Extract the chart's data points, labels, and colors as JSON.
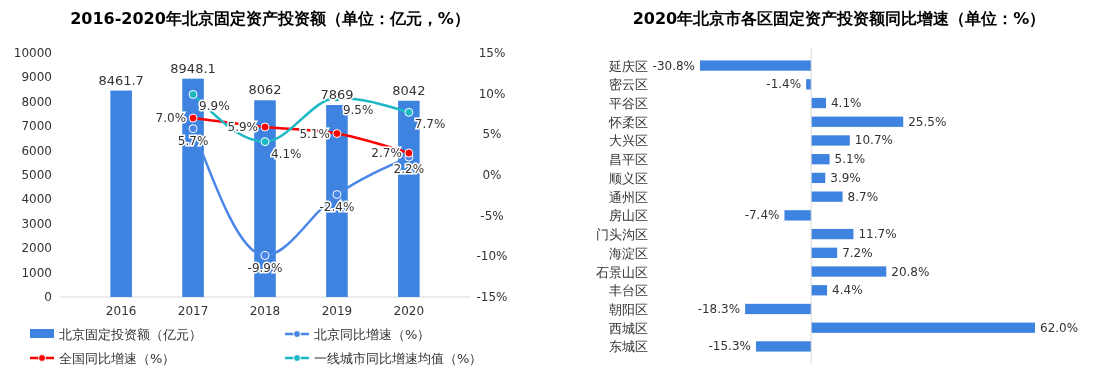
{
  "chart_data": [
    {
      "type": "bar",
      "title": "2016-2020年北京固定资产投资额（单位：亿元，%）",
      "categories": [
        "2016",
        "2017",
        "2018",
        "2019",
        "2020"
      ],
      "series": [
        {
          "name": "北京固定投资额（亿元）",
          "color": "#3f83e0",
          "values": [
            8461.7,
            8948.1,
            8062,
            7869,
            8042
          ],
          "value_labels": [
            "8461.7",
            "8948.1",
            "8062",
            "7869",
            "8042"
          ]
        },
        {
          "type": "line",
          "axis": "y2",
          "name": "北京同比增速（%）",
          "color": "#4a86e8",
          "values": [
            null,
            5.7,
            -9.9,
            -2.4,
            2.2
          ],
          "value_labels": [
            null,
            "5.7%",
            "-9.9%",
            "-2.4%",
            "2.2%"
          ]
        },
        {
          "type": "line",
          "axis": "y2",
          "name": "全国同比增速（%）",
          "color": "#ff0000",
          "values": [
            null,
            7.0,
            5.9,
            5.1,
            2.7
          ],
          "value_labels": [
            null,
            "7.0%",
            "5.9%",
            "5.1%",
            "2.7%"
          ]
        },
        {
          "type": "line",
          "axis": "y2",
          "name": "一线城市同比增速均值（%）",
          "color": "#1cb8c4",
          "values": [
            null,
            9.9,
            4.1,
            9.5,
            7.7
          ],
          "value_labels": [
            null,
            "9.9%",
            "4.1%",
            "9.5%",
            "7.7%"
          ]
        }
      ],
      "ylim": [
        0,
        10000
      ],
      "yticks": [
        0,
        1000,
        2000,
        3000,
        4000,
        5000,
        6000,
        7000,
        8000,
        9000,
        10000
      ],
      "y2lim": [
        -15,
        15
      ],
      "y2ticks": [
        {
          "value": -15,
          "label": "-15%"
        },
        {
          "value": -10,
          "label": "-10%"
        },
        {
          "value": -5,
          "label": "-5%"
        },
        {
          "value": 0,
          "label": "0%"
        },
        {
          "value": 5,
          "label": "5%"
        },
        {
          "value": 10,
          "label": "10%"
        },
        {
          "value": 15,
          "label": "15%"
        }
      ],
      "legend": "bottom",
      "marker": "circle"
    },
    {
      "type": "bar",
      "orientation": "horizontal",
      "title": "2020年北京市各区固定资产投资额同比增速（单位：%）",
      "categories": [
        "延庆区",
        "密云区",
        "平谷区",
        "怀柔区",
        "大兴区",
        "昌平区",
        "顺义区",
        "通州区",
        "房山区",
        "门头沟区",
        "海淀区",
        "石景山区",
        "丰台区",
        "朝阳区",
        "西城区",
        "东城区"
      ],
      "values": [
        -30.8,
        -1.4,
        4.1,
        25.5,
        10.7,
        5.1,
        3.9,
        8.7,
        -7.4,
        11.7,
        7.2,
        20.8,
        4.4,
        -18.3,
        62.0,
        -15.3
      ],
      "value_labels": [
        "-30.8%",
        "-1.4%",
        "4.1%",
        "25.5%",
        "10.7%",
        "5.1%",
        "3.9%",
        "8.7%",
        "-7.4%",
        "11.7%",
        "7.2%",
        "20.8%",
        "4.4%",
        "-18.3%",
        "62.0%",
        "-15.3%"
      ],
      "color": "#3f83e0"
    }
  ]
}
